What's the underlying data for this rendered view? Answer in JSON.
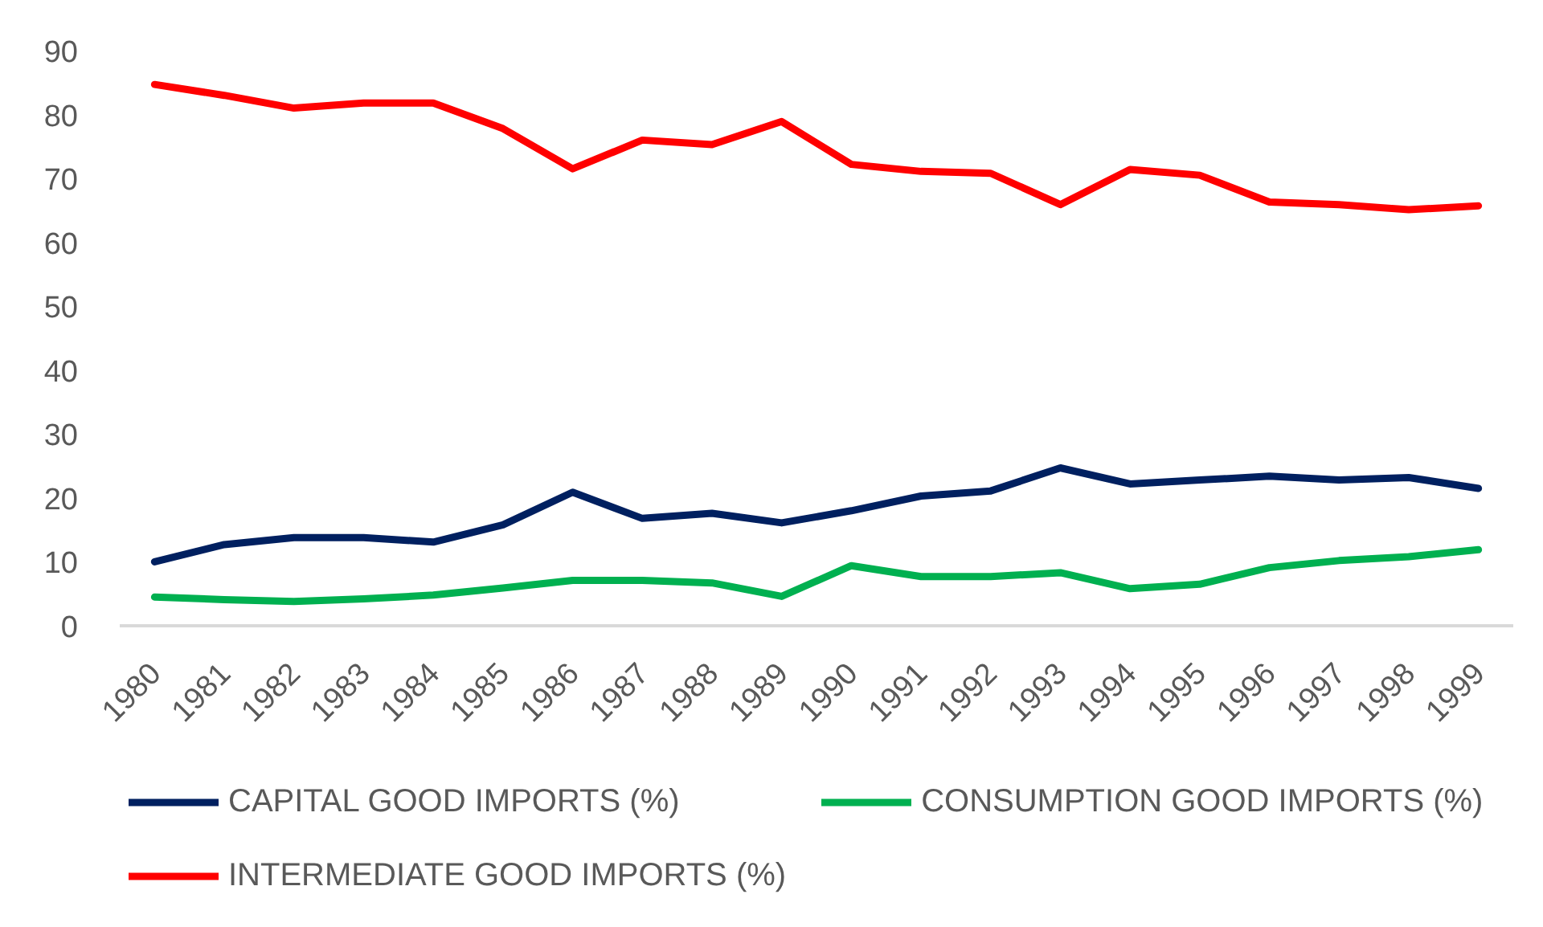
{
  "chart_data": {
    "type": "line",
    "categories": [
      "1980",
      "1981",
      "1982",
      "1983",
      "1984",
      "1985",
      "1986",
      "1987",
      "1988",
      "1989",
      "1990",
      "1991",
      "1992",
      "1993",
      "1994",
      "1995",
      "1996",
      "1997",
      "1998",
      "1999"
    ],
    "series": [
      {
        "name": "CAPITAL GOOD IMPORTS (%)",
        "color": "#002060",
        "values": [
          10.0,
          12.7,
          13.8,
          13.8,
          13.1,
          15.8,
          20.9,
          16.8,
          17.6,
          16.1,
          18.0,
          20.3,
          21.1,
          24.7,
          22.2,
          22.8,
          23.4,
          22.8,
          23.2,
          21.5
        ]
      },
      {
        "name": "CONSUMPTION GOOD IMPORTS (%)",
        "color": "#00b050",
        "values": [
          4.5,
          4.1,
          3.8,
          4.2,
          4.8,
          5.9,
          7.1,
          7.1,
          6.7,
          4.6,
          9.4,
          7.7,
          7.7,
          8.3,
          5.8,
          6.5,
          9.1,
          10.2,
          10.8,
          11.9
        ]
      },
      {
        "name": "INTERMEDIATE GOOD IMPORTS (%)",
        "color": "#ff0000",
        "values": [
          84.7,
          83.0,
          81.0,
          81.8,
          81.8,
          77.8,
          71.5,
          76.0,
          75.3,
          78.9,
          72.2,
          71.1,
          70.8,
          65.9,
          71.4,
          70.5,
          66.3,
          65.9,
          65.1,
          65.7
        ]
      }
    ],
    "ylim": [
      0,
      90
    ],
    "yticks": [
      0,
      10,
      20,
      30,
      40,
      50,
      60,
      70,
      80,
      90
    ],
    "grid": false,
    "legend": "bottom",
    "line_style": "solid"
  }
}
